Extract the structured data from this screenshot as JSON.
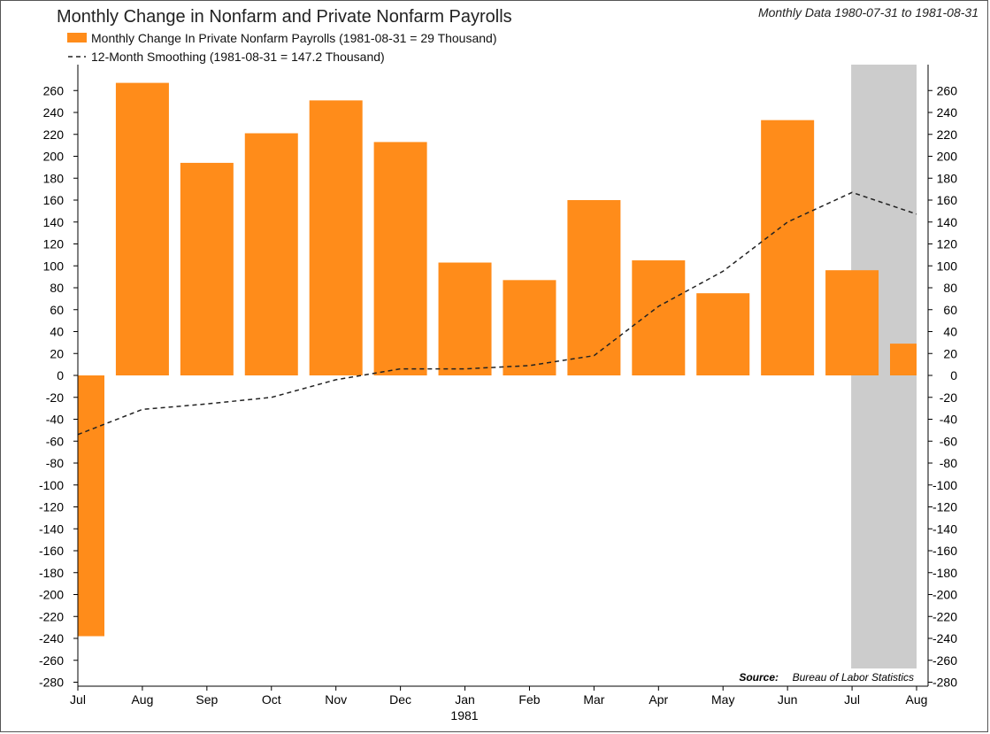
{
  "chart_data": {
    "type": "bar",
    "title": "Monthly Change in Nonfarm and Private Nonfarm Payrolls",
    "subtitle": "Monthly Data 1980-07-31 to 1981-08-31",
    "categories": [
      "Jul",
      "Aug",
      "Sep",
      "Oct",
      "Nov",
      "Dec",
      "Jan",
      "Feb",
      "Mar",
      "Apr",
      "May",
      "Jun",
      "Jul",
      "Aug"
    ],
    "x_year_label": "1981",
    "series": [
      {
        "name": "Monthly Change In Private Nonfarm Payrolls (1981-08-31 = 29 Thousand)",
        "type": "bar",
        "color": "#ff8c1a",
        "values": [
          -238,
          267,
          194,
          221,
          251,
          213,
          103,
          87,
          160,
          105,
          75,
          233,
          96,
          29
        ]
      },
      {
        "name": "12-Month Smoothing  (1981-08-31 = 147.2 Thousand)",
        "type": "line",
        "style": "dashed",
        "color": "#222222",
        "values": [
          -54,
          -31,
          -26,
          -20,
          -4,
          6,
          6,
          9,
          18,
          63,
          95,
          140,
          167,
          147.2
        ]
      }
    ],
    "ylim": [
      -280,
      270
    ],
    "yticks": [
      260,
      240,
      220,
      200,
      180,
      160,
      140,
      120,
      100,
      80,
      60,
      40,
      20,
      0,
      -20,
      -40,
      -60,
      -80,
      -100,
      -120,
      -140,
      -160,
      -180,
      -200,
      -220,
      -240,
      -260,
      -280
    ],
    "shaded_region": {
      "from_index": 12,
      "to_index": 13,
      "color": "#cccccc"
    },
    "source_label": "Source:",
    "source_value": "Bureau of Labor Statistics",
    "grid": false,
    "legend_position": "top-left"
  }
}
